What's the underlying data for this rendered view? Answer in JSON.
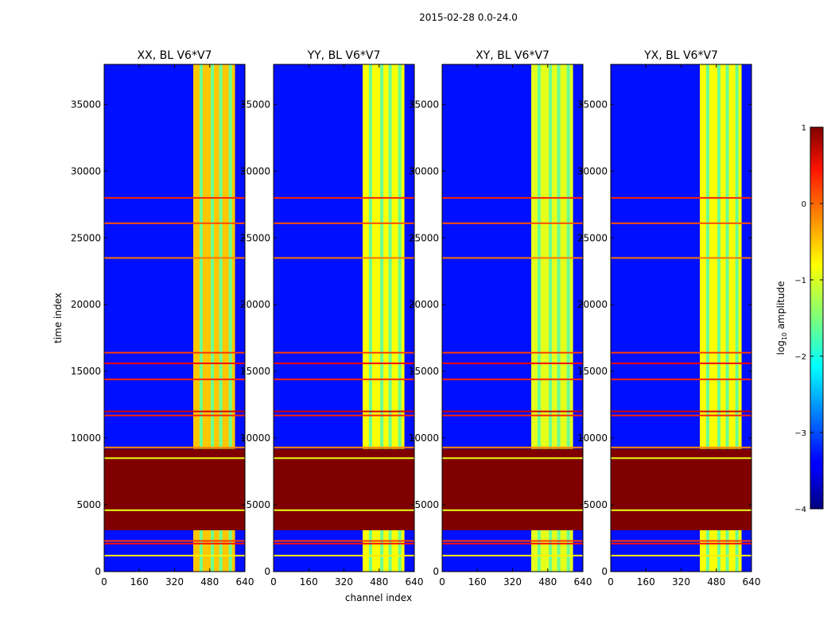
{
  "chart_data": {
    "type": "heatmap",
    "suptitle": "2015-02-28 0.0-24.0",
    "xlabel": "channel index",
    "ylabel": "time index",
    "xlim": [
      0,
      640
    ],
    "ylim": [
      0,
      38000
    ],
    "x_ticks": [
      0,
      160,
      320,
      480,
      640
    ],
    "y_ticks": [
      0,
      5000,
      10000,
      15000,
      20000,
      25000,
      30000,
      35000
    ],
    "colormap": "jet",
    "colorbar": {
      "label_prefix": "log",
      "label_sub": "10",
      "label_suffix": " amplitude",
      "range": [
        -4,
        1
      ],
      "ticks": [
        {
          "value": 1,
          "label": "1"
        },
        {
          "value": 0,
          "label": "0"
        },
        {
          "value": -1,
          "label": "−1"
        },
        {
          "value": -2,
          "label": "−2"
        },
        {
          "value": -3,
          "label": "−3"
        },
        {
          "value": -4,
          "label": "−4"
        }
      ]
    },
    "panels": [
      {
        "title": "XX, BL V6*V7",
        "band_channels": [
          405,
          595
        ],
        "band_level": -0.6
      },
      {
        "title": "YY, BL V6*V7",
        "band_channels": [
          405,
          595
        ],
        "band_level": -0.9
      },
      {
        "title": "XY, BL V6*V7",
        "band_channels": [
          405,
          595
        ],
        "band_level": -1.0
      },
      {
        "title": "YX, BL V6*V7",
        "band_channels": [
          405,
          595
        ],
        "band_level": -0.9
      }
    ],
    "saturated_time_range": [
      3100,
      9200
    ],
    "background_level": -3.3,
    "flag_lines": [
      {
        "time": 28000,
        "level": 0.2
      },
      {
        "time": 26100,
        "level": 0.0
      },
      {
        "time": 23500,
        "level": -0.2
      },
      {
        "time": 16400,
        "level": 0.1
      },
      {
        "time": 15600,
        "level": 0.4
      },
      {
        "time": 14400,
        "level": 0.2
      },
      {
        "time": 12000,
        "level": 0.6
      },
      {
        "time": 11700,
        "level": 0.2
      },
      {
        "time": 9300,
        "level": -0.3
      },
      {
        "time": 2300,
        "level": 0.1
      },
      {
        "time": 2100,
        "level": 0.3
      },
      {
        "time": 1200,
        "level": -0.8
      },
      {
        "time": 8500,
        "level": -1.0
      },
      {
        "time": 4600,
        "level": -1.0
      }
    ]
  }
}
